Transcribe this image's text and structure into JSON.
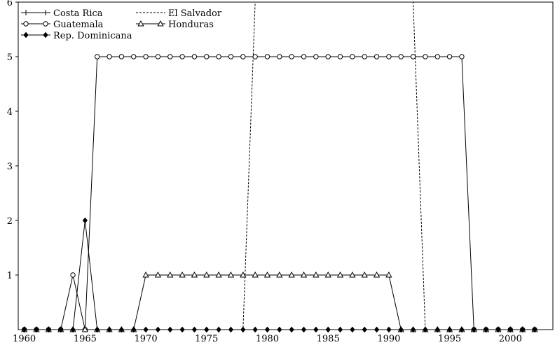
{
  "chart_data": {
    "type": "line",
    "title": "",
    "xlabel": "",
    "ylabel": "",
    "xlim": [
      1959.5,
      2003.5
    ],
    "ylim": [
      0,
      6
    ],
    "x_ticks": [
      "1960",
      "1965",
      "1970",
      "1975",
      "1980",
      "1985",
      "1990",
      "1995",
      "2000"
    ],
    "y_ticks": [
      "1",
      "2",
      "3",
      "4",
      "5",
      "6"
    ],
    "x": [
      1960,
      1961,
      1962,
      1963,
      1964,
      1965,
      1966,
      1967,
      1968,
      1969,
      1970,
      1971,
      1972,
      1973,
      1974,
      1975,
      1976,
      1977,
      1978,
      1979,
      1980,
      1981,
      1982,
      1983,
      1984,
      1985,
      1986,
      1987,
      1988,
      1989,
      1990,
      1991,
      1992,
      1993,
      1994,
      1995,
      1996,
      1997,
      1998,
      1999,
      2000,
      2001,
      2002
    ],
    "legend_position": "top-left",
    "series": [
      {
        "name": "Costa Rica",
        "marker": "plus",
        "dash": "solid",
        "values": [
          0,
          0,
          0,
          0,
          0,
          0,
          0,
          0,
          0,
          0,
          0,
          0,
          0,
          0,
          0,
          0,
          0,
          0,
          0,
          0,
          0,
          0,
          0,
          0,
          0,
          0,
          0,
          0,
          0,
          0,
          0,
          0,
          0,
          0,
          0,
          0,
          0,
          0,
          0,
          0,
          0,
          0,
          0
        ]
      },
      {
        "name": "El Salvador",
        "marker": "none",
        "dash": "dashed",
        "values": [
          0,
          0,
          0,
          0,
          0,
          0,
          0,
          0,
          0,
          0,
          0,
          0,
          0,
          0,
          0,
          0,
          0,
          0,
          0,
          6,
          6,
          6,
          6,
          6,
          6,
          6,
          6,
          6,
          6,
          6,
          6,
          6,
          6,
          0,
          0,
          0,
          0,
          0,
          0,
          0,
          0,
          0,
          0
        ]
      },
      {
        "name": "Guatemala",
        "marker": "circle",
        "dash": "solid",
        "values": [
          0,
          0,
          0,
          0,
          1,
          0,
          5,
          5,
          5,
          5,
          5,
          5,
          5,
          5,
          5,
          5,
          5,
          5,
          5,
          5,
          5,
          5,
          5,
          5,
          5,
          5,
          5,
          5,
          5,
          5,
          5,
          5,
          5,
          5,
          5,
          5,
          5,
          0,
          0,
          0,
          0,
          0,
          0
        ]
      },
      {
        "name": "Honduras",
        "marker": "triangle",
        "dash": "solid",
        "values": [
          0,
          0,
          0,
          0,
          0,
          0,
          0,
          0,
          0,
          0,
          1,
          1,
          1,
          1,
          1,
          1,
          1,
          1,
          1,
          1,
          1,
          1,
          1,
          1,
          1,
          1,
          1,
          1,
          1,
          1,
          1,
          0,
          0,
          0,
          0,
          0,
          0,
          0,
          0,
          0,
          0,
          0,
          0
        ]
      },
      {
        "name": "Rep. Dominicana",
        "marker": "diamond",
        "dash": "solid",
        "values": [
          0,
          0,
          0,
          0,
          0,
          2,
          0,
          0,
          0,
          0,
          0,
          0,
          0,
          0,
          0,
          0,
          0,
          0,
          0,
          0,
          0,
          0,
          0,
          0,
          0,
          0,
          0,
          0,
          0,
          0,
          0,
          0,
          0,
          0,
          0,
          0,
          0,
          0,
          0,
          0,
          0,
          0,
          0
        ]
      }
    ]
  }
}
